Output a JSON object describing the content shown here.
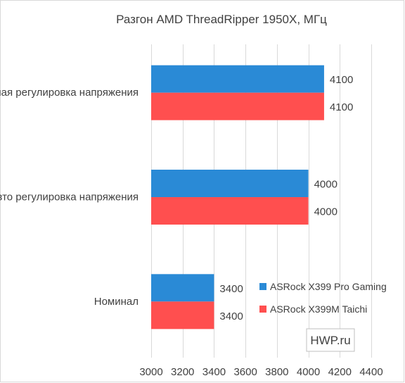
{
  "chart_data": {
    "type": "bar",
    "orientation": "horizontal",
    "title": "Разгон AMD ThreadRipper 1950X, МГц",
    "categories": [
      "Ручная регулировка напряжения",
      "Авто регулировка напряжения",
      "Номинал"
    ],
    "series": [
      {
        "name": "ASRock X399 Pro Gaming",
        "color": "#2a8ad6",
        "values": [
          4100,
          4000,
          3400
        ]
      },
      {
        "name": "ASRock X399M Taichi",
        "color": "#ff4f4f",
        "values": [
          4100,
          4000,
          3400
        ]
      }
    ],
    "xlim": [
      3000,
      4400
    ],
    "xticks": [
      3000,
      3200,
      3400,
      3600,
      3800,
      4000,
      4200,
      4400
    ],
    "grid": true,
    "legend": "bottom-right"
  },
  "watermark": "HWP.ru"
}
